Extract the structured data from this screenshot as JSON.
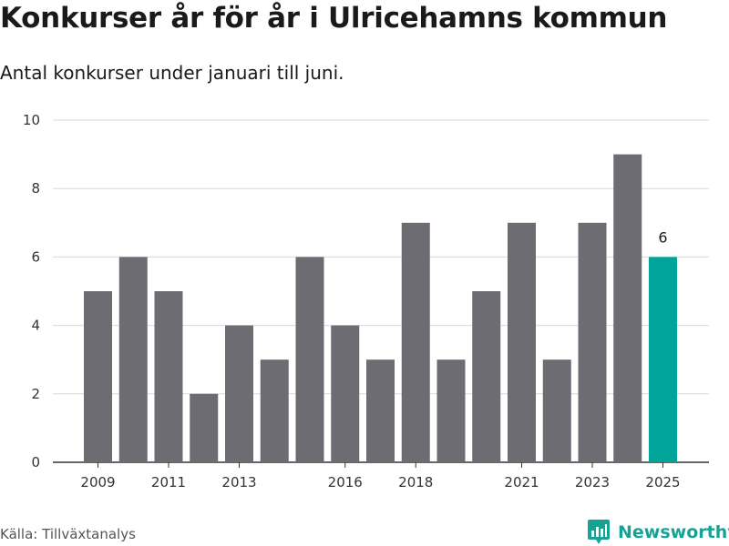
{
  "title": "Konkurser år för år i Ulricehamns kommun",
  "subtitle": "Antal konkurser under januari till juni.",
  "source": "Källa: Tillväxtanalys",
  "brand": {
    "name": "Newsworthy",
    "color": "#17a394",
    "icon": "newsworthy-chart-bubble-icon"
  },
  "colors": {
    "bar": "#6d6c73",
    "highlight": "#00a499",
    "grid": "#d9d9d9",
    "axis": "#333333"
  },
  "chart_data": {
    "type": "bar",
    "title": "Konkurser år för år i Ulricehamns kommun",
    "subtitle": "Antal konkurser under januari till juni.",
    "xlabel": "",
    "ylabel": "",
    "categories": [
      "2009",
      "2010",
      "2011",
      "2012",
      "2013",
      "2014",
      "2015",
      "2016",
      "2017",
      "2018",
      "2019",
      "2020",
      "2021",
      "2022",
      "2023",
      "2024",
      "2025"
    ],
    "values": [
      5,
      6,
      5,
      2,
      4,
      3,
      6,
      4,
      3,
      7,
      3,
      5,
      7,
      3,
      7,
      9,
      6
    ],
    "x_tick_labels": [
      "2009",
      "2011",
      "2013",
      "2016",
      "2018",
      "2021",
      "2023",
      "2025"
    ],
    "ylim": [
      0,
      10
    ],
    "y_ticks": [
      0,
      2,
      4,
      6,
      8,
      10
    ],
    "grid": true,
    "highlight": {
      "category": "2025",
      "label": "6"
    }
  }
}
